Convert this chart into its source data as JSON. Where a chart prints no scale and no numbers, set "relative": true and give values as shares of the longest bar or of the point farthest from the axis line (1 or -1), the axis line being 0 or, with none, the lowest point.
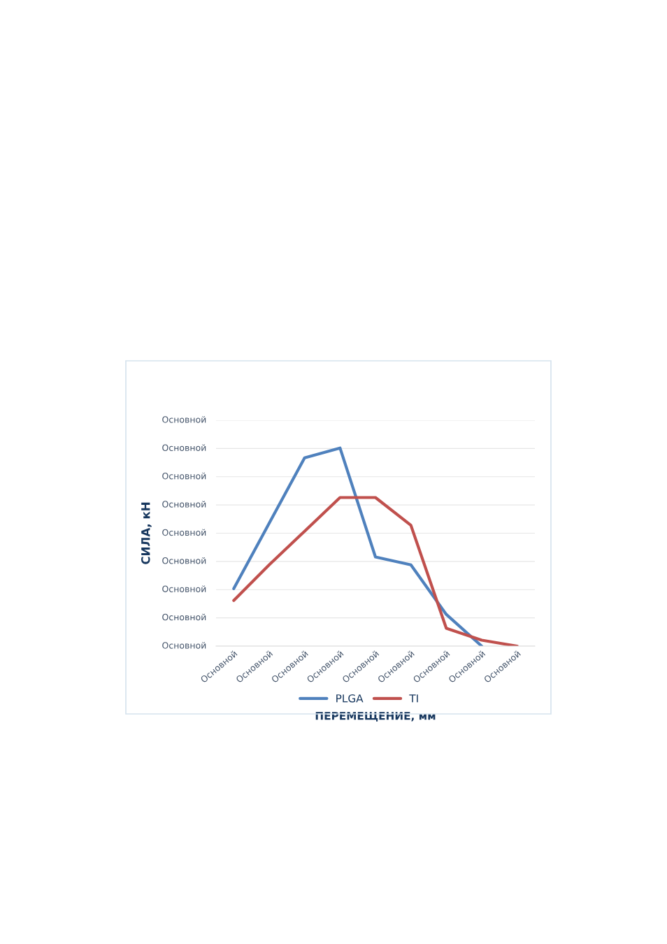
{
  "chart_data": {
    "type": "line",
    "xlabel": "ПЕРЕМЕЩЕНИЕ, мм",
    "ylabel": "СИЛА, кН",
    "categories": [
      "Основной",
      "Основной",
      "Основной",
      "Основной",
      "Основной",
      "Основной",
      "Основной",
      "Основной",
      "Основной"
    ],
    "relative": true,
    "annotations": [
      "Основной",
      "Основной",
      "Основной",
      "Основной",
      "Основной",
      "Основной",
      "Основной",
      "Основной",
      "Основной"
    ],
    "series": [
      {
        "name": "PLGA",
        "color": "#4f81bd",
        "values": [
          0.29,
          0.62,
          0.95,
          1,
          0.45,
          0.41,
          0.16,
          0,
          null
        ]
      },
      {
        "name": "TI",
        "color": "#c0504d",
        "values": [
          0.23,
          0.41,
          0.58,
          0.75,
          0.75,
          0.61,
          0.09,
          0.03,
          0
        ]
      }
    ],
    "grid": "y",
    "legend": "bottom",
    "marker": "none",
    "line_style": "solid"
  }
}
